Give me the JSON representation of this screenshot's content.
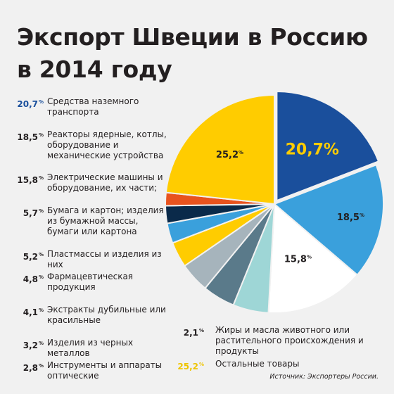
{
  "title_line1": "Экспорт Швеции в Россию",
  "title_line2": "в 2014 году",
  "source": "Источник: Экспортеры России.",
  "percent_sign": "%",
  "chart_data": {
    "type": "pie",
    "title": "Экспорт Швеции в Россию в 2014 году",
    "unit": "%",
    "slices": [
      {
        "label": "Средства наземного транспорта",
        "value": 20.7,
        "display": "20,7",
        "color": "#1a4f9c"
      },
      {
        "label": "Реакторы ядерные, котлы, оборудование и механические устройства",
        "value": 18.5,
        "display": "18,5",
        "color": "#3aa0dc"
      },
      {
        "label": "Электрические машины и оборудование, их части;",
        "value": 15.8,
        "display": "15,8",
        "color": "#ffffff"
      },
      {
        "label": "Бумага и картон; изделия из бумажной массы, бумаги или картона",
        "value": 5.7,
        "display": "5,7",
        "color": "#9ed6d6"
      },
      {
        "label": "Пластмассы и изделия из них",
        "value": 5.2,
        "display": "5,2",
        "color": "#5a7a8a"
      },
      {
        "label": "Фармацевтическая продукция",
        "value": 4.8,
        "display": "4,8",
        "color": "#a6b4bc"
      },
      {
        "label": "Экстракты дубильные или красильные",
        "value": 4.1,
        "display": "4,1",
        "color": "#ffcc00"
      },
      {
        "label": "Изделия из черных металлов",
        "value": 3.2,
        "display": "3,2",
        "color": "#3aa0dc"
      },
      {
        "label": "Инструменты и аппараты оптические",
        "value": 2.8,
        "display": "2,8",
        "color": "#0a2a4a"
      },
      {
        "label": "Жиры и масла животного или растительного происхождения и продукты",
        "value": 2.1,
        "display": "2,1",
        "color": "#e8531e"
      },
      {
        "label": "Остальные товары",
        "value": 25.2,
        "display": "25,2",
        "color": "#ffcc00"
      }
    ]
  },
  "legend_left": [
    {
      "value": "20,7",
      "label": "Средства наземного транспорта",
      "style": "blue"
    },
    {
      "value": "18,5",
      "label": "Реакторы ядерные, котлы, оборудование и механические устройства",
      "style": "dark"
    },
    {
      "value": "15,8",
      "label": "Электрические машины и оборудование, их части;",
      "style": "dark"
    },
    {
      "value": "5,7",
      "label": "Бумага и картон; изделия из бумажной массы, бумаги или картона",
      "style": "dark"
    },
    {
      "value": "5,2",
      "label": "Пластмассы и изделия из них",
      "style": "dark"
    },
    {
      "value": "4,8",
      "label": "Фармацевтическая продукция",
      "style": "dark"
    },
    {
      "value": "4,1",
      "label": "Экстракты дубильные или красильные",
      "style": "dark"
    },
    {
      "value": "3,2",
      "label": "Изделия из черных металлов",
      "style": "dark"
    },
    {
      "value": "2,8",
      "label": "Инструменты и аппараты оптические",
      "style": "dark"
    }
  ],
  "legend_right": [
    {
      "value": "2,1",
      "label": "Жиры и масла животного или растительного происхождения и продукты",
      "style": "dark"
    },
    {
      "value": "25,2",
      "label": "Остальные товары",
      "style": "yellow"
    }
  ]
}
